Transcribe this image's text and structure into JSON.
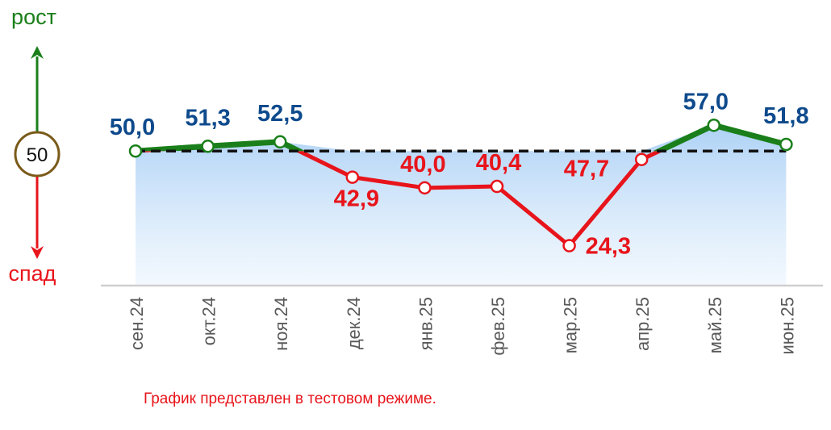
{
  "indicator": {
    "growth_label": "рост",
    "decline_label": "спад",
    "threshold_value": "50",
    "growth_color": "#1a7f1a",
    "decline_color": "#e8141b"
  },
  "footnote": "График представлен в тестовом режиме.",
  "chart_data": {
    "type": "line",
    "categories": [
      "сен.24",
      "окт.24",
      "ноя.24",
      "дек.24",
      "янв.25",
      "фев.25",
      "мар.25",
      "апр.25",
      "май.25",
      "июн.25"
    ],
    "values": [
      50.0,
      51.3,
      52.5,
      42.9,
      40.0,
      40.4,
      24.3,
      47.7,
      57.0,
      51.8
    ],
    "value_labels": [
      "50,0",
      "51,3",
      "52,5",
      "42,9",
      "40,0",
      "40,4",
      "24,3",
      "47,7",
      "57,0",
      "51,8"
    ],
    "threshold": 50,
    "ylim": [
      22,
      61
    ],
    "title": "",
    "xlabel": "",
    "ylabel": "",
    "grid": false,
    "area_fill": true,
    "colors": {
      "above": "#1a7f1a",
      "below": "#e8141b",
      "label_above": "#0e4a8c",
      "label_below": "#e8141b",
      "threshold_line": "#111111",
      "area_top": "#a9cff5",
      "axis": "#cfcfcf",
      "tick_text": "#595959"
    }
  }
}
